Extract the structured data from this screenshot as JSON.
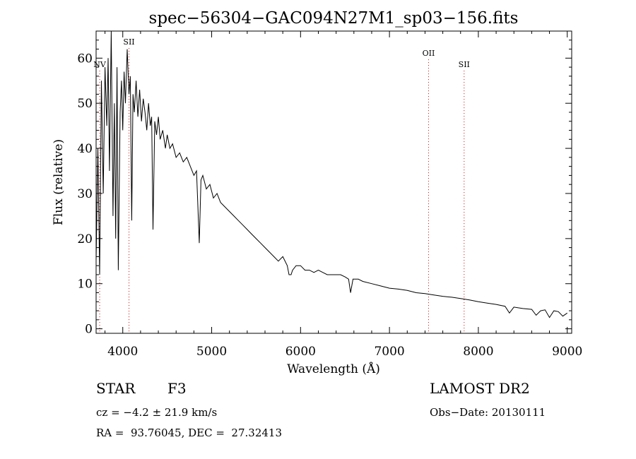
{
  "chart_data": {
    "type": "line",
    "title": "spec−56304−GAC094N27M1_sp03−156.fits",
    "xlabel": "Wavelength (Å)",
    "ylabel": "Flux (relative)",
    "xlim": [
      3700,
      9050
    ],
    "ylim": [
      -1,
      66
    ],
    "x_ticks": [
      4000,
      5000,
      6000,
      7000,
      8000,
      9000
    ],
    "y_ticks": [
      0,
      10,
      20,
      30,
      40,
      50,
      60
    ],
    "grid": false,
    "line_color": "#000000",
    "marker_color": "#cc0000",
    "series": [
      {
        "x": [
          3700,
          3720,
          3740,
          3760,
          3780,
          3800,
          3820,
          3835,
          3850,
          3870,
          3890,
          3905,
          3920,
          3935,
          3950,
          3970,
          3985,
          4000,
          4015,
          4030,
          4050,
          4070,
          4085,
          4101,
          4115,
          4130,
          4150,
          4170,
          4190,
          4210,
          4230,
          4250,
          4270,
          4290,
          4310,
          4325,
          4340,
          4360,
          4380,
          4400,
          4420,
          4450,
          4480,
          4500,
          4530,
          4560,
          4600,
          4640,
          4680,
          4720,
          4760,
          4800,
          4830,
          4861,
          4880,
          4900,
          4940,
          4980,
          5020,
          5060,
          5100,
          5150,
          5200,
          5250,
          5300,
          5350,
          5400,
          5450,
          5500,
          5550,
          5600,
          5650,
          5700,
          5750,
          5800,
          5850,
          5870,
          5893,
          5910,
          5950,
          6000,
          6050,
          6100,
          6150,
          6200,
          6250,
          6300,
          6350,
          6400,
          6450,
          6500,
          6540,
          6563,
          6590,
          6650,
          6700,
          6800,
          6900,
          7000,
          7100,
          7200,
          7300,
          7400,
          7500,
          7600,
          7700,
          7800,
          7900,
          8000,
          8100,
          8200,
          8300,
          8350,
          8400,
          8500,
          8600,
          8650,
          8700,
          8750,
          8800,
          8850,
          8900,
          8950,
          9000
        ],
        "y": [
          15,
          40,
          12,
          55,
          30,
          58,
          45,
          60,
          35,
          66,
          25,
          50,
          20,
          58,
          13,
          48,
          55,
          44,
          57,
          50,
          62,
          52,
          56,
          24,
          52,
          48,
          55,
          47,
          53,
          46,
          51,
          48,
          44,
          50,
          45,
          47,
          22,
          46,
          43,
          47,
          42,
          44,
          40,
          43,
          40,
          41,
          38,
          39,
          37,
          38,
          36,
          34,
          35,
          19,
          33,
          34,
          31,
          32,
          29,
          30,
          28,
          27,
          26,
          25,
          24,
          23,
          22,
          21,
          20,
          19,
          18,
          17,
          16,
          15,
          16,
          14,
          12,
          12,
          13,
          14,
          14,
          13,
          13,
          12.5,
          13,
          12.5,
          12,
          12,
          12,
          12,
          11.5,
          11,
          8,
          11,
          11,
          10.5,
          10,
          9.5,
          9,
          8.8,
          8.5,
          8,
          7.8,
          7.5,
          7.2,
          7,
          6.7,
          6.4,
          6,
          5.7,
          5.4,
          5,
          3.5,
          4.8,
          4.5,
          4.3,
          3,
          4,
          4.2,
          2.5,
          4,
          3.8,
          2.8,
          3.5
        ]
      }
    ],
    "lines": [
      {
        "label": "NV",
        "x": 3740,
        "label_y": 58
      },
      {
        "label": "SII",
        "x": 4070,
        "label_y": 63
      },
      {
        "label": "OII",
        "x": 7440,
        "label_y": 60.5
      },
      {
        "label": "SII",
        "x": 7840,
        "label_y": 58
      }
    ]
  },
  "info": {
    "object_class": "STAR",
    "subclass": "F3",
    "survey": "LAMOST DR2",
    "cz": "cz = −4.2 ± 21.9 km/s",
    "obs_date": "Obs−Date: 20130111",
    "coords": "RA =  93.76045, DEC =  27.32413"
  }
}
